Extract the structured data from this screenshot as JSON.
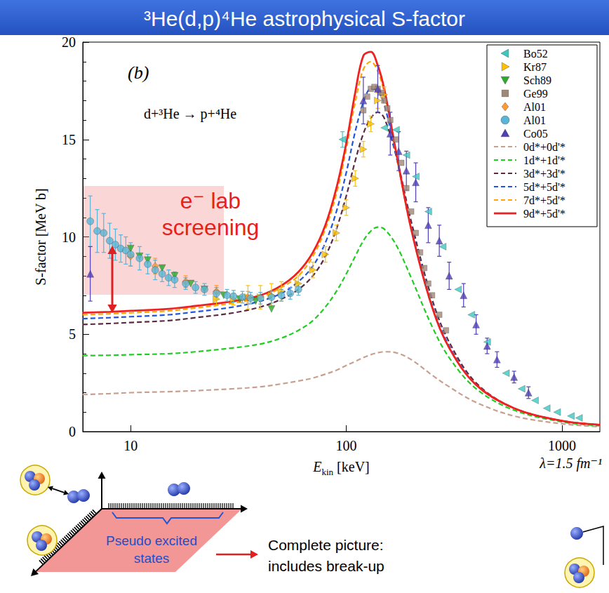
{
  "title": "³He(d,p)⁴He astrophysical S-factor",
  "chart_data": {
    "type": "scatter",
    "annotations": [
      {
        "text": "(b)"
      },
      {
        "text": "d+³He → p+⁴He"
      },
      {
        "lines": [
          "e⁻ lab",
          "screening"
        ]
      },
      {
        "text": "λ=1.5 fm⁻¹"
      }
    ],
    "xlabel": {
      "text": "E",
      "subscript": "kin",
      "unit": "[keV]"
    },
    "ylabel": "S-factor [MeV b]",
    "log": "x",
    "xlim": [
      6,
      1500
    ],
    "xticks": [
      10,
      100,
      1000
    ],
    "ylim": [
      0,
      20
    ],
    "yticks": [
      0,
      5,
      10,
      15,
      20
    ],
    "grid": false,
    "legend": "top-right",
    "series": [
      {
        "name": "Bo52",
        "type": "scatter",
        "marker": "triangle-left",
        "color": "#3cc8c0",
        "x": [
          96,
          150,
          170,
          190,
          210,
          240,
          280,
          330,
          380,
          450,
          550,
          650,
          750,
          850,
          950,
          1100,
          1200
        ],
        "values": [
          15.0,
          15.6,
          15.5,
          14.2,
          13.1,
          11.3,
          9.5,
          7.3,
          6.0,
          4.6,
          3.0,
          2.2,
          1.6,
          1.2,
          1.0,
          0.8,
          0.7
        ],
        "errors": [
          0.4,
          null,
          null,
          null,
          null,
          null,
          null,
          null,
          null,
          null,
          null,
          null,
          null,
          null,
          null,
          null,
          null
        ]
      },
      {
        "name": "Kr87",
        "type": "scatter",
        "marker": "triangle-right",
        "color": "#ffc000",
        "x": [
          25,
          30,
          35,
          40,
          45,
          50,
          60,
          70,
          80,
          90,
          100,
          110,
          120,
          130,
          140,
          150
        ],
        "values": [
          6.8,
          6.8,
          6.9,
          6.9,
          7.0,
          7.2,
          7.6,
          8.3,
          9.1,
          10.2,
          11.5,
          13.0,
          14.5,
          15.8,
          17.0,
          17.3
        ],
        "errors": [
          0.3,
          0.3,
          0.6,
          0.6,
          0.6,
          0.5,
          0.4,
          0.4,
          0.4,
          0.4,
          0.4,
          0.4,
          0.4,
          0.4,
          0.4,
          0.4
        ]
      },
      {
        "name": "Sch89",
        "type": "scatter",
        "marker": "triangle-down",
        "color": "#2eaa2e",
        "x": [
          10,
          11,
          12,
          14,
          16,
          19,
          22,
          27,
          32,
          38,
          45
        ],
        "values": [
          9.4,
          9.0,
          8.8,
          8.4,
          8.0,
          7.6,
          7.3,
          7.0,
          6.8,
          6.7,
          6.3
        ]
      },
      {
        "name": "Ge99",
        "type": "scatter",
        "marker": "square",
        "color": "#a08878",
        "x": [
          120,
          125,
          130,
          135,
          140,
          145,
          150,
          155,
          160,
          170,
          180,
          190,
          200,
          210,
          220,
          230,
          240,
          250,
          270,
          290
        ],
        "values": [
          16.5,
          17.2,
          17.6,
          17.7,
          17.6,
          17.4,
          17.0,
          16.6,
          16.0,
          15.0,
          13.8,
          12.5,
          11.3,
          10.2,
          9.2,
          8.4,
          7.6,
          7.0,
          6.0,
          5.2
        ]
      },
      {
        "name": "Al01",
        "type": "scatter",
        "marker": "diamond",
        "color": "#ff9933",
        "x": [
          10,
          13,
          18,
          25,
          35
        ],
        "values": [
          9.0,
          8.5,
          7.7,
          7.2,
          6.9
        ],
        "errors": [
          0.5,
          0.4,
          0.3,
          0.3,
          0.3
        ]
      },
      {
        "name": "Al01",
        "type": "scatter",
        "marker": "circle",
        "color": "#5ab4d6",
        "x": [
          6.5,
          7,
          7.5,
          8,
          8.5,
          9,
          9.5,
          10,
          11,
          12,
          13,
          14,
          15,
          16,
          18,
          20,
          22,
          25,
          28,
          30,
          33,
          36,
          40,
          45,
          50,
          55,
          60
        ],
        "values": [
          10.8,
          10.3,
          10.2,
          9.8,
          9.6,
          9.4,
          9.3,
          9.1,
          8.9,
          8.6,
          8.3,
          8.1,
          7.9,
          7.8,
          7.6,
          7.4,
          7.3,
          7.1,
          7.0,
          6.95,
          6.9,
          6.85,
          6.85,
          6.9,
          7.0,
          7.1,
          7.3
        ],
        "errors": [
          1.3,
          1.1,
          1.0,
          0.9,
          0.8,
          0.7,
          0.7,
          0.6,
          0.6,
          0.5,
          0.5,
          0.4,
          0.4,
          0.4,
          0.3,
          0.3,
          0.3,
          0.3,
          0.3,
          0.3,
          0.3,
          0.3,
          0.3,
          0.3,
          0.3,
          0.3,
          0.3
        ]
      },
      {
        "name": "Co05",
        "type": "scatter",
        "marker": "triangle-up",
        "color": "#5040b8",
        "x": [
          6.5,
          120,
          140,
          160,
          175,
          190,
          210,
          240,
          270,
          300,
          350,
          400,
          450,
          500,
          600,
          700
        ],
        "values": [
          8.1,
          17.0,
          17.6,
          15.3,
          14.4,
          13.4,
          12.8,
          10.6,
          9.8,
          8.0,
          7.0,
          5.5,
          4.4,
          3.7,
          2.8,
          2.0
        ],
        "errors": [
          1.4,
          1.2,
          1.2,
          1.1,
          1.0,
          1.0,
          1.0,
          0.9,
          0.8,
          0.7,
          0.6,
          0.5,
          0.4,
          0.4,
          0.3,
          0.3
        ]
      },
      {
        "name": "0d*+0d'*",
        "type": "line",
        "line_style": "dashed",
        "color": "#c8a090",
        "x": [
          6,
          8,
          10,
          15,
          20,
          30,
          40,
          50,
          60,
          70,
          80,
          90,
          100,
          110,
          120,
          130,
          140,
          150,
          170,
          200,
          250,
          300,
          400,
          600,
          1000,
          1500
        ],
        "values": [
          1.9,
          1.95,
          2.0,
          2.05,
          2.1,
          2.2,
          2.3,
          2.45,
          2.6,
          2.75,
          2.95,
          3.15,
          3.4,
          3.6,
          3.8,
          3.95,
          4.05,
          4.1,
          4.05,
          3.7,
          2.9,
          2.3,
          1.5,
          0.8,
          0.4,
          0.25
        ]
      },
      {
        "name": "1d*+1d'*",
        "type": "line",
        "line_style": "dashed",
        "color": "#22cc22",
        "x": [
          6,
          8,
          10,
          15,
          20,
          30,
          40,
          50,
          60,
          70,
          80,
          90,
          100,
          110,
          120,
          130,
          140,
          150,
          170,
          200,
          250,
          300,
          400,
          600,
          1000,
          1500
        ],
        "values": [
          3.9,
          3.92,
          3.95,
          4.0,
          4.1,
          4.3,
          4.5,
          4.8,
          5.2,
          5.7,
          6.4,
          7.2,
          8.1,
          9.0,
          9.8,
          10.3,
          10.5,
          10.4,
          9.6,
          7.9,
          5.4,
          3.8,
          2.2,
          1.1,
          0.5,
          0.3
        ]
      },
      {
        "name": "3d*+3d'*",
        "type": "line",
        "line_style": "dashed",
        "color": "#5a2a40",
        "x": [
          6,
          8,
          10,
          15,
          20,
          30,
          40,
          50,
          60,
          70,
          80,
          90,
          100,
          110,
          120,
          130,
          140,
          150,
          170,
          200,
          250,
          300,
          400,
          600,
          1000,
          1500
        ],
        "values": [
          5.5,
          5.55,
          5.6,
          5.7,
          5.85,
          6.1,
          6.4,
          6.8,
          7.3,
          8.0,
          9.0,
          10.4,
          12.1,
          13.9,
          15.3,
          16.1,
          16.4,
          16.1,
          14.2,
          10.8,
          6.8,
          4.6,
          2.5,
          1.2,
          0.55,
          0.35
        ]
      },
      {
        "name": "5d*+5d'*",
        "type": "line",
        "line_style": "dashed",
        "color": "#2255dd",
        "x": [
          6,
          8,
          10,
          15,
          20,
          30,
          40,
          50,
          60,
          70,
          80,
          90,
          100,
          110,
          120,
          130,
          140,
          150,
          170,
          200,
          250,
          300,
          400,
          600,
          1000,
          1500
        ],
        "values": [
          5.8,
          5.85,
          5.9,
          6.0,
          6.15,
          6.4,
          6.7,
          7.1,
          7.7,
          8.5,
          9.7,
          11.3,
          13.3,
          15.4,
          16.9,
          17.6,
          17.5,
          16.8,
          14.2,
          10.5,
          6.5,
          4.4,
          2.4,
          1.2,
          0.55,
          0.35
        ]
      },
      {
        "name": "7d*+5d'*",
        "type": "line",
        "line_style": "dashed",
        "color": "#ffa500",
        "x": [
          6,
          8,
          10,
          15,
          20,
          30,
          40,
          50,
          60,
          70,
          80,
          90,
          100,
          110,
          120,
          130,
          140,
          150,
          170,
          200,
          250,
          300,
          400,
          600,
          1000,
          1500
        ],
        "values": [
          6.0,
          6.05,
          6.1,
          6.2,
          6.35,
          6.6,
          6.9,
          7.4,
          8.0,
          9.0,
          10.4,
          12.2,
          14.5,
          16.9,
          18.6,
          19.0,
          18.5,
          17.4,
          14.3,
          10.4,
          6.4,
          4.3,
          2.4,
          1.2,
          0.55,
          0.35
        ]
      },
      {
        "name": "9d*+5d'*",
        "type": "line",
        "line_style": "solid",
        "color": "#ee2222",
        "x": [
          6,
          8,
          10,
          15,
          20,
          30,
          40,
          50,
          60,
          70,
          80,
          90,
          100,
          110,
          120,
          130,
          140,
          150,
          170,
          200,
          250,
          300,
          400,
          600,
          1000,
          1500
        ],
        "values": [
          6.1,
          6.15,
          6.2,
          6.3,
          6.45,
          6.7,
          7.0,
          7.5,
          8.2,
          9.2,
          10.6,
          12.5,
          14.8,
          17.4,
          19.3,
          19.5,
          18.8,
          17.6,
          14.4,
          10.4,
          6.4,
          4.3,
          2.4,
          1.2,
          0.55,
          0.35
        ]
      }
    ]
  },
  "diagram": {
    "labels": [
      {
        "lines": [
          "Pseudo excited",
          "states"
        ]
      },
      {
        "lines": [
          "Complete picture:",
          "includes break-up"
        ]
      }
    ]
  }
}
